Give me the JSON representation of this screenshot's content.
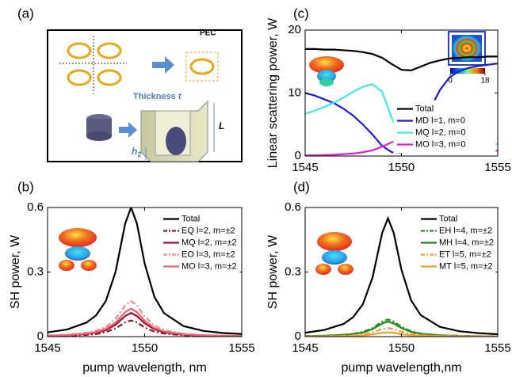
{
  "panel_a": {
    "label": "(a)",
    "pec": "PEC",
    "thickness": "Thickness",
    "thickness_var": "t",
    "length_var": "L",
    "height_var": "h",
    "height_sub": "2"
  },
  "chart_data": [
    {
      "type": "line",
      "panel_label": "(b)",
      "ylabel": "SH power, W",
      "xlabel": "pump wavelength, nm",
      "x": [
        1545,
        1546,
        1547,
        1547.5,
        1548,
        1548.5,
        1549,
        1549.3,
        1549.6,
        1550,
        1550.5,
        1551,
        1552,
        1553,
        1554,
        1555
      ],
      "xlim": [
        1545,
        1555
      ],
      "xticks": [
        1545,
        1550,
        1555
      ],
      "ylim": [
        0,
        0.6
      ],
      "yticks": [
        0,
        0.3,
        0.6
      ],
      "legend": "upper right",
      "series": [
        {
          "name": "Total",
          "color": "#000000",
          "dash": false,
          "values": [
            0.02,
            0.033,
            0.065,
            0.099,
            0.165,
            0.3,
            0.526,
            0.6,
            0.526,
            0.34,
            0.185,
            0.109,
            0.049,
            0.027,
            0.017,
            0.012
          ]
        },
        {
          "name": "EQ l=2, m=±2",
          "color": "#8b1a1a",
          "dash": true,
          "values": [
            0.003,
            0.004,
            0.008,
            0.012,
            0.021,
            0.038,
            0.066,
            0.075,
            0.066,
            0.042,
            0.023,
            0.014,
            0.006,
            0.003,
            0.002,
            0.001
          ]
        },
        {
          "name": "MQ l=2, m=±2",
          "color": "#9c1030",
          "dash": false,
          "values": [
            0.004,
            0.006,
            0.012,
            0.018,
            0.03,
            0.055,
            0.096,
            0.11,
            0.096,
            0.062,
            0.034,
            0.02,
            0.009,
            0.005,
            0.003,
            0.002
          ]
        },
        {
          "name": "EO l=3, m=±2",
          "color": "#f08c8c",
          "dash": true,
          "values": [
            0.006,
            0.009,
            0.018,
            0.027,
            0.045,
            0.083,
            0.145,
            0.165,
            0.145,
            0.093,
            0.051,
            0.03,
            0.013,
            0.007,
            0.005,
            0.003
          ]
        },
        {
          "name": "MO l=3, m=±2",
          "color": "#f0646e",
          "dash": false,
          "values": [
            0.004,
            0.007,
            0.014,
            0.021,
            0.036,
            0.065,
            0.114,
            0.13,
            0.114,
            0.074,
            0.04,
            0.024,
            0.011,
            0.006,
            0.004,
            0.003
          ]
        }
      ]
    },
    {
      "type": "line",
      "panel_label": "(c)",
      "ylabel": "Linear scattering power, W",
      "x": [
        1545,
        1545.5,
        1546,
        1546.5,
        1547,
        1547.5,
        1548,
        1548.5,
        1549,
        1549.5,
        1550,
        1550.5,
        1551,
        1551.5,
        1552,
        1552.5,
        1553,
        1553.5,
        1554,
        1554.5,
        1555
      ],
      "xlim": [
        1545,
        1555
      ],
      "xticks": [
        1545,
        1550,
        1555
      ],
      "ylim": [
        0,
        20
      ],
      "yticks": [
        0,
        10,
        20
      ],
      "legend": "lower right",
      "colorbar_ticks": [
        0,
        18
      ],
      "series": [
        {
          "name": "Total",
          "color": "#000000",
          "dash": false,
          "values": [
            17,
            17,
            16.9,
            16.9,
            16.8,
            16.7,
            16.5,
            16.2,
            15.6,
            14.6,
            13.7,
            13.6,
            14.2,
            14.8,
            15.2,
            15.5,
            15.6,
            15.7,
            15.7,
            15.8,
            15.8
          ]
        },
        {
          "name": "MD l=1, m=0",
          "color": "#1c1cd8",
          "dash": false,
          "values": [
            10,
            9.6,
            9,
            8.4,
            7.5,
            6.4,
            5,
            3.4,
            1.6,
            0.6,
            0.5,
            1.5,
            4,
            7.5,
            10.5,
            12.5,
            13.5,
            14,
            14.3,
            14.5,
            14.7
          ]
        },
        {
          "name": "MQ l=2, m=0",
          "color": "#3ce8e8",
          "dash": false,
          "values": [
            6.7,
            7.2,
            7.8,
            8.5,
            9.3,
            10.2,
            11,
            11.4,
            10.2,
            6,
            3,
            1.8,
            1.3,
            1.1,
            1.1,
            1.2,
            1.3,
            1.5,
            1.6,
            1.8,
            1.9
          ]
        },
        {
          "name": "MO l=3, m=0",
          "color": "#e020d0",
          "dash": false,
          "values": [
            0.1,
            0.1,
            0.15,
            0.2,
            0.3,
            0.4,
            0.6,
            0.9,
            1.5,
            2.2,
            2.6,
            2.5,
            2.2,
            1.9,
            1.6,
            1.4,
            1.2,
            1.1,
            1,
            0.9,
            0.85
          ]
        }
      ]
    },
    {
      "type": "line",
      "panel_label": "(d)",
      "ylabel": "SH power, W",
      "xlabel": "pump wavelength,nm",
      "x": [
        1545,
        1546,
        1547,
        1547.5,
        1548,
        1548.5,
        1549,
        1549.3,
        1549.6,
        1550,
        1550.5,
        1551,
        1552,
        1553,
        1554,
        1555
      ],
      "xlim": [
        1545,
        1555
      ],
      "xticks": [
        1545,
        1550,
        1555
      ],
      "ylim": [
        0,
        0.6
      ],
      "yticks": [
        0,
        0.3,
        0.6
      ],
      "legend": "upper right",
      "series": [
        {
          "name": "Total",
          "color": "#000000",
          "dash": false,
          "values": [
            0.018,
            0.031,
            0.059,
            0.091,
            0.151,
            0.275,
            0.482,
            0.55,
            0.482,
            0.311,
            0.169,
            0.1,
            0.045,
            0.025,
            0.016,
            0.011
          ]
        },
        {
          "name": "EH l=4, m=±2",
          "color": "#2e8b2e",
          "dash": true,
          "values": [
            0.003,
            0.004,
            0.009,
            0.013,
            0.022,
            0.04,
            0.07,
            0.08,
            0.07,
            0.045,
            0.025,
            0.014,
            0.006,
            0.004,
            0.002,
            0.002
          ]
        },
        {
          "name": "MH l=4, m=±2",
          "color": "#1a8c1a",
          "dash": false,
          "values": [
            0.002,
            0.004,
            0.008,
            0.012,
            0.019,
            0.035,
            0.061,
            0.07,
            0.061,
            0.04,
            0.022,
            0.013,
            0.006,
            0.003,
            0.002,
            0.001
          ]
        },
        {
          "name": "ET l=5, m=±2",
          "color": "#ff9933",
          "dash": true,
          "values": [
            0.001,
            0.002,
            0.004,
            0.007,
            0.011,
            0.02,
            0.035,
            0.04,
            0.035,
            0.023,
            0.012,
            0.007,
            0.003,
            0.002,
            0.001,
            0.001
          ]
        },
        {
          "name": "MT l=5, m=±2",
          "color": "#f0a030",
          "dash": false,
          "values": [
            0.001,
            0.001,
            0.002,
            0.003,
            0.006,
            0.01,
            0.018,
            0.02,
            0.018,
            0.011,
            0.006,
            0.004,
            0.002,
            0.001,
            0.001,
            0
          ]
        }
      ]
    }
  ]
}
